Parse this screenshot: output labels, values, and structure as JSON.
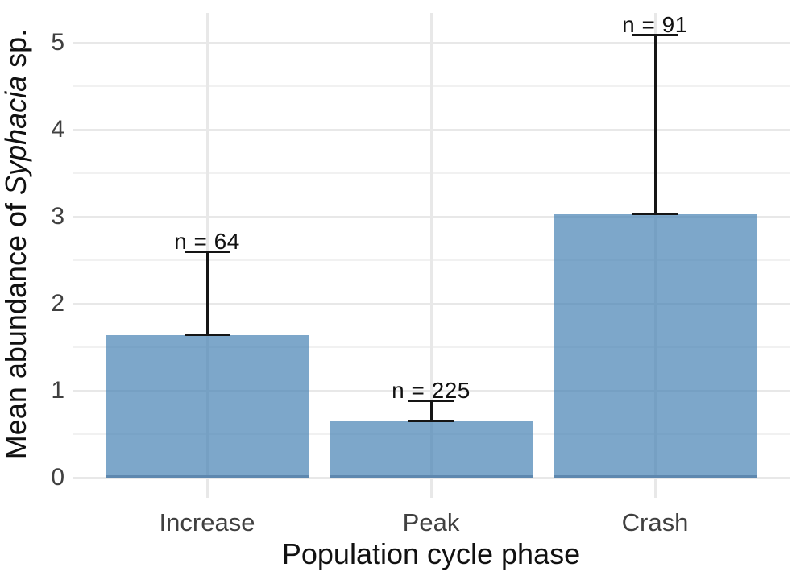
{
  "chart_data": {
    "type": "bar",
    "title": "",
    "xlabel": "Population cycle phase",
    "ylabel": "Mean abundance of Syphacia sp.",
    "ylabel_parts": [
      {
        "text": "Mean abundance of ",
        "italic": false
      },
      {
        "text": "Syphacia",
        "italic": true
      },
      {
        "text": " sp.",
        "italic": false
      }
    ],
    "categories": [
      "Increase",
      "Peak",
      "Crash"
    ],
    "values": [
      1.64,
      0.65,
      3.03
    ],
    "error_upper": [
      2.6,
      0.89,
      5.09
    ],
    "sample_labels": [
      "n = 64",
      "n = 225",
      "n = 91"
    ],
    "yticks": [
      0,
      1,
      2,
      3,
      4,
      5
    ],
    "yticks_minor": [
      0.5,
      1.5,
      2.5,
      3.5,
      4.5
    ],
    "ylim": [
      0,
      5.35
    ],
    "grid": "on",
    "legend": "none",
    "colors": {
      "background": "#FFFFFF",
      "bar_fill": "#4682B4",
      "bar_opacity": 0.7,
      "bar_bottom_edge": "#5E88AF",
      "grid_major": "#E8E8E8",
      "grid_minor": "#F1F1F1",
      "tick_mark": "#E8E8E8",
      "axis_text": "#404040",
      "title_text": "#111111",
      "error_bar": "#151515"
    }
  }
}
